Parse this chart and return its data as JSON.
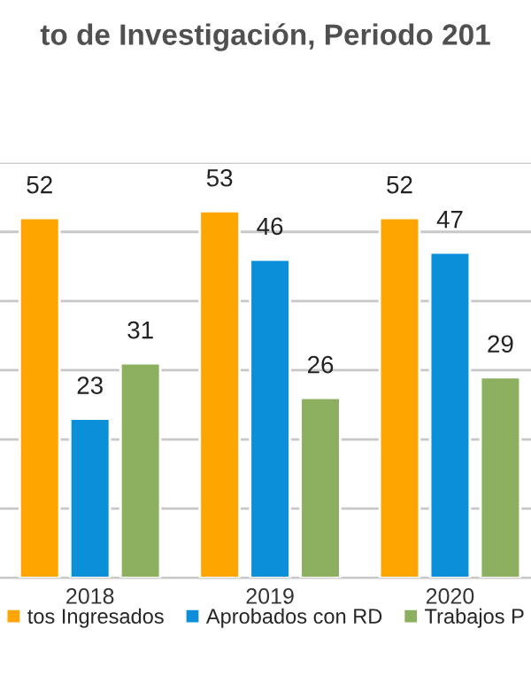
{
  "chart_data": {
    "type": "bar",
    "title": "to de Investigación, Periodo 201",
    "categories": [
      "2018",
      "2019",
      "2020"
    ],
    "series": [
      {
        "name": "tos Ingresados",
        "color": "#ffa500",
        "values": [
          52,
          53,
          52
        ]
      },
      {
        "name": "Aprobados con RD",
        "color": "#0a8fd8",
        "values": [
          23,
          46,
          47
        ]
      },
      {
        "name": "Trabajos P",
        "color": "#8cb060",
        "values": [
          31,
          26,
          29
        ]
      }
    ],
    "ylim": [
      0,
      60
    ],
    "yticks": [
      {
        "value": 0,
        "label": null
      },
      {
        "value": 10,
        "label": null
      },
      {
        "value": 20,
        "label": null
      },
      {
        "value": 30,
        "label": null
      },
      {
        "value": 40,
        "label": null
      },
      {
        "value": 50,
        "label": null
      },
      {
        "value": 60,
        "label": null
      }
    ],
    "tick_labels": "x",
    "grid": "y",
    "data_labels": true,
    "legend": "bottom"
  }
}
